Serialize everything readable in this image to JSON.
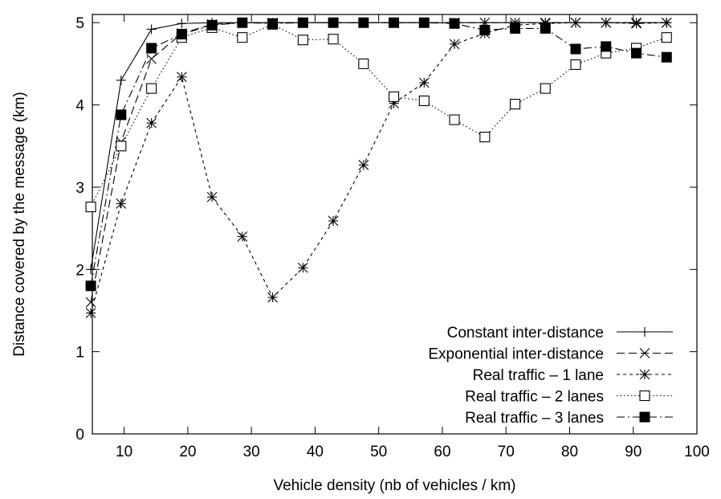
{
  "chart_data": {
    "type": "line",
    "xlabel": "Vehicle density (nb of vehicles / km)",
    "ylabel": "Distance covered by the message (km)",
    "xlim": [
      5,
      100
    ],
    "ylim": [
      0,
      5.1
    ],
    "xticks": [
      10,
      20,
      30,
      40,
      50,
      60,
      70,
      80,
      90,
      100
    ],
    "yticks": [
      0,
      1,
      2,
      3,
      4,
      5
    ],
    "grid": false,
    "legend_position": "bottom-right",
    "x": [
      4.76,
      9.52,
      14.29,
      19.05,
      23.81,
      28.57,
      33.33,
      38.1,
      42.86,
      47.62,
      52.38,
      57.14,
      61.9,
      66.67,
      71.43,
      76.19,
      80.95,
      85.71,
      90.48,
      95.24
    ],
    "series": [
      {
        "name": "Constant inter-distance",
        "marker": "plus",
        "dash": "",
        "values": [
          2.0,
          4.3,
          4.92,
          4.99,
          5.0,
          5.0,
          5.0,
          5.0,
          5.0,
          5.0,
          5.0,
          5.0,
          5.0,
          5.0,
          5.0,
          5.0,
          5.0,
          5.0,
          5.0,
          5.0
        ]
      },
      {
        "name": "Exponential inter-distance",
        "marker": "cross",
        "dash": "10,5",
        "values": [
          1.6,
          3.55,
          4.56,
          4.87,
          4.98,
          5.0,
          5.0,
          5.0,
          5.0,
          5.0,
          5.0,
          5.0,
          5.0,
          5.0,
          5.0,
          5.0,
          5.0,
          5.0,
          5.0,
          5.0
        ]
      },
      {
        "name": "Real traffic – 1 lane",
        "marker": "star",
        "dash": "4,4",
        "values": [
          1.47,
          2.8,
          3.78,
          4.34,
          2.88,
          2.4,
          1.66,
          2.02,
          2.59,
          3.27,
          4.02,
          4.27,
          4.74,
          4.87,
          4.97,
          4.99,
          5.0,
          5.0,
          4.99,
          5.0
        ]
      },
      {
        "name": "Real traffic – 2 lanes",
        "marker": "open-square",
        "dash": "1.5,3",
        "values": [
          2.76,
          3.5,
          4.2,
          4.82,
          4.94,
          4.82,
          4.98,
          4.79,
          4.8,
          4.5,
          4.1,
          4.05,
          3.82,
          3.61,
          4.01,
          4.2,
          4.49,
          4.63,
          4.69,
          4.82
        ]
      },
      {
        "name": "Real traffic – 3 lanes",
        "marker": "filled-square",
        "dash": "10,4,2,4",
        "values": [
          1.8,
          3.88,
          4.69,
          4.86,
          4.97,
          5.0,
          4.99,
          5.0,
          5.0,
          5.0,
          5.0,
          5.0,
          4.99,
          4.91,
          4.93,
          4.93,
          4.68,
          4.71,
          4.63,
          4.58
        ]
      }
    ]
  }
}
